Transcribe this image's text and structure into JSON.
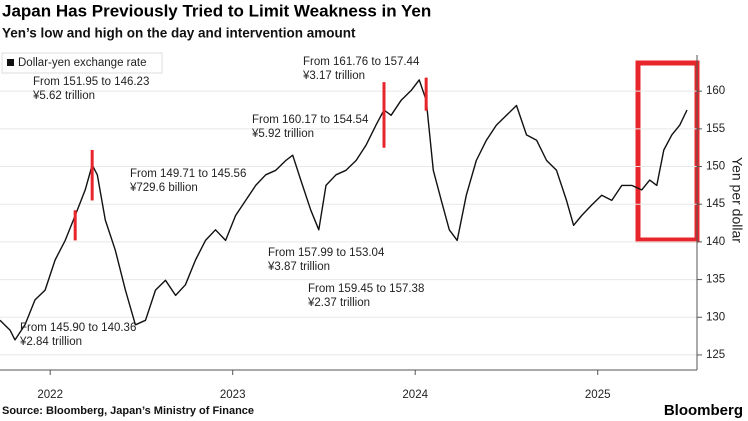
{
  "chart_data": {
    "type": "line",
    "title": "Japan Has Previously Tried to Limit Weakness in Yen",
    "subtitle": "Yen’s low and high on the day and intervention amount",
    "y_axis_label": "Yen per dollar",
    "source": "Source: Bloomberg, Japan’s Ministry of Finance",
    "brand": "Bloomberg",
    "x": [
      2021.725,
      2021.78,
      2021.807,
      2021.862,
      2021.917,
      2021.972,
      2022.027,
      2022.082,
      2022.137,
      2022.192,
      2022.23,
      2022.258,
      2022.302,
      2022.357,
      2022.412,
      2022.467,
      2022.522,
      2022.577,
      2022.632,
      2022.687,
      2022.741,
      2022.796,
      2022.851,
      2022.906,
      2022.961,
      2023.016,
      2023.071,
      2023.126,
      2023.181,
      2023.236,
      2023.291,
      2023.329,
      2023.373,
      2023.428,
      2023.472,
      2023.511,
      2023.566,
      2023.621,
      2023.676,
      2023.73,
      2023.785,
      2023.829,
      2023.868,
      2023.923,
      2023.978,
      2024.022,
      2024.06,
      2024.099,
      2024.143,
      2024.187,
      2024.23,
      2024.28,
      2024.335,
      2024.39,
      2024.445,
      2024.5,
      2024.555,
      2024.61,
      2024.665,
      2024.72,
      2024.774,
      2024.829,
      2024.868,
      2024.912,
      2024.967,
      2025.022,
      2025.077,
      2025.132,
      2025.187,
      2025.241,
      2025.285,
      2025.324,
      2025.362,
      2025.406,
      2025.45,
      2025.489
    ],
    "series": [
      {
        "name": "Dollar-yen exchange rate",
        "color": "#111111",
        "values": [
          129.6,
          128.3,
          127,
          129,
          132.3,
          133.6,
          137.6,
          140.2,
          143.5,
          146.9,
          150.2,
          148.9,
          142.9,
          138.9,
          133.6,
          129,
          129.6,
          133.6,
          134.9,
          132.9,
          134.3,
          137.6,
          140.2,
          141.6,
          140.2,
          143.5,
          145.5,
          147.5,
          148.9,
          149.5,
          150.8,
          151.5,
          148.2,
          144.2,
          141.6,
          147.5,
          148.9,
          149.5,
          150.8,
          152.8,
          155.5,
          157.5,
          156.8,
          158.8,
          160.1,
          161.5,
          158.8,
          149.5,
          145.5,
          141.6,
          140.2,
          146.2,
          150.8,
          153.5,
          155.5,
          156.8,
          158.1,
          154.2,
          153.5,
          150.8,
          149.5,
          145.5,
          142.2,
          143.5,
          144.9,
          146.2,
          145.5,
          147.5,
          147.5,
          146.9,
          148.2,
          147.5,
          152.2,
          154.2,
          155.5,
          157.5
        ]
      }
    ],
    "intervention_color": "#e8252a",
    "intervention_bars": [
      {
        "x": 2022.137,
        "low": 140.2,
        "high": 144.2
      },
      {
        "x": 2022.23,
        "low": 145.5,
        "high": 152.2
      },
      {
        "x": 2023.829,
        "low": 152.5,
        "high": 161.2
      },
      {
        "x": 2024.06,
        "low": 157.4,
        "high": 161.8
      }
    ],
    "annotations": [
      {
        "text": "From 151.95 to 146.23",
        "amount": "¥5.62 trillion"
      },
      {
        "text": "From 149.71 to 145.56",
        "amount": "¥729.6 billion"
      },
      {
        "text": "From 145.90 to 140.36",
        "amount": "¥2.84 trillion"
      },
      {
        "text": "From 161.76 to 157.44",
        "amount": "¥3.17 trillion"
      },
      {
        "text": "From 160.17 to 154.54",
        "amount": "¥5.92 trillion"
      },
      {
        "text": "From 157.99 to 153.04",
        "amount": "¥3.87 trillion"
      },
      {
        "text": "From 159.45 to 157.38",
        "amount": "¥2.37 trillion"
      }
    ],
    "xlim": [
      2021.725,
      2025.544
    ],
    "xticks": [
      2022,
      2023,
      2024,
      2025
    ],
    "ylim": [
      123,
      164.8
    ],
    "yticks": [
      125,
      130,
      135,
      140,
      145,
      150,
      155,
      160
    ],
    "grid": true
  }
}
